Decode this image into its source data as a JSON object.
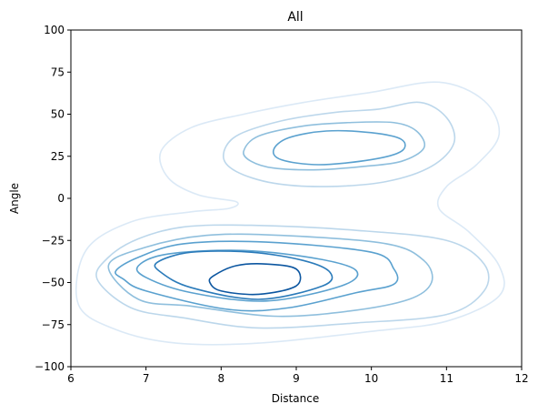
{
  "chart_data": {
    "type": "contour",
    "title": "All",
    "xlabel": "Distance",
    "ylabel": "Angle",
    "xlim": [
      6,
      12
    ],
    "ylim": [
      -100,
      100
    ],
    "xticks": [
      6,
      7,
      8,
      9,
      10,
      11,
      12
    ],
    "yticks": [
      100,
      75,
      50,
      25,
      0,
      -25,
      -50,
      -75,
      -100
    ],
    "grid": false,
    "legend": "none",
    "colormap": "Blues",
    "contour_levels": [
      {
        "level": 1,
        "color": "#dbe9f6",
        "paths": [
          [
            [
              6.2,
              -31
            ],
            [
              6.8,
              -14
            ],
            [
              7.6,
              -8
            ],
            [
              8.1,
              -6
            ],
            [
              8.2,
              -2
            ],
            [
              7.7,
              2
            ],
            [
              7.3,
              12
            ],
            [
              7.2,
              28
            ],
            [
              7.6,
              42
            ],
            [
              8.3,
              50
            ],
            [
              9.1,
              57
            ],
            [
              10.0,
              63
            ],
            [
              10.9,
              69
            ],
            [
              11.5,
              58
            ],
            [
              11.7,
              38
            ],
            [
              11.4,
              20
            ],
            [
              11.0,
              7
            ],
            [
              10.9,
              -6
            ],
            [
              11.3,
              -20
            ],
            [
              11.7,
              -40
            ],
            [
              11.7,
              -58
            ],
            [
              11.0,
              -73
            ],
            [
              10.0,
              -79
            ],
            [
              8.5,
              -86
            ],
            [
              7.4,
              -86
            ],
            [
              6.6,
              -78
            ],
            [
              6.1,
              -63
            ]
          ]
        ]
      },
      {
        "level": 2,
        "color": "#bcd7eb",
        "paths": [
          [
            [
              8.03,
              25
            ],
            [
              8.2,
              37
            ],
            [
              8.8,
              46
            ],
            [
              9.5,
              51
            ],
            [
              10.1,
              53
            ],
            [
              10.65,
              57
            ],
            [
              11.0,
              48
            ],
            [
              11.1,
              33
            ],
            [
              10.8,
              19
            ],
            [
              10.2,
              10
            ],
            [
              9.4,
              7
            ],
            [
              8.7,
              9
            ],
            [
              8.2,
              16
            ]
          ],
          [
            [
              6.35,
              -48
            ],
            [
              6.5,
              -35
            ],
            [
              6.9,
              -24
            ],
            [
              7.5,
              -17
            ],
            [
              8.4,
              -16
            ],
            [
              9.8,
              -19
            ],
            [
              11.0,
              -25
            ],
            [
              11.5,
              -39
            ],
            [
              11.5,
              -55
            ],
            [
              11.0,
              -69
            ],
            [
              9.8,
              -74
            ],
            [
              8.5,
              -77
            ],
            [
              7.5,
              -71
            ],
            [
              6.8,
              -65
            ]
          ]
        ]
      },
      {
        "level": 3,
        "color": "#8fbfdd",
        "paths": [
          [
            [
              8.3,
              28
            ],
            [
              8.5,
              37
            ],
            [
              9.1,
              43
            ],
            [
              9.7,
              45
            ],
            [
              10.3,
              45
            ],
            [
              10.6,
              40
            ],
            [
              10.7,
              30
            ],
            [
              10.4,
              22
            ],
            [
              9.9,
              19
            ],
            [
              9.3,
              17
            ],
            [
              8.7,
              18
            ],
            [
              8.4,
              22
            ]
          ],
          [
            [
              6.5,
              -40
            ],
            [
              7.0,
              -29
            ],
            [
              7.8,
              -22
            ],
            [
              8.8,
              -22
            ],
            [
              10.2,
              -27
            ],
            [
              10.7,
              -37
            ],
            [
              10.8,
              -50
            ],
            [
              10.5,
              -60
            ],
            [
              9.7,
              -67
            ],
            [
              8.7,
              -70
            ],
            [
              7.6,
              -64
            ],
            [
              6.9,
              -60
            ]
          ]
        ]
      },
      {
        "level": 4,
        "color": "#5aa1cf",
        "paths": [
          [
            [
              8.7,
              29
            ],
            [
              8.9,
              36
            ],
            [
              9.4,
              40
            ],
            [
              10.0,
              39
            ],
            [
              10.4,
              35
            ],
            [
              10.4,
              28
            ],
            [
              10.0,
              23
            ],
            [
              9.3,
              20
            ],
            [
              8.8,
              23
            ]
          ],
          [
            [
              6.6,
              -43
            ],
            [
              6.9,
              -35
            ],
            [
              7.5,
              -27
            ],
            [
              8.6,
              -26
            ],
            [
              10.0,
              -32
            ],
            [
              10.3,
              -42
            ],
            [
              10.3,
              -51
            ],
            [
              9.8,
              -56
            ],
            [
              8.9,
              -65
            ],
            [
              8.1,
              -66
            ],
            [
              7.0,
              -55
            ],
            [
              6.7,
              -48
            ]
          ],
          [
            [
              6.9,
              -40
            ],
            [
              7.3,
              -33
            ],
            [
              8.3,
              -31
            ],
            [
              9.3,
              -36
            ],
            [
              9.8,
              -43
            ],
            [
              9.6,
              -52
            ],
            [
              8.6,
              -61
            ],
            [
              7.6,
              -56
            ],
            [
              7.0,
              -47
            ]
          ]
        ]
      },
      {
        "level": 5,
        "color": "#2b7bba",
        "paths": [
          [
            [
              7.15,
              -38
            ],
            [
              7.6,
              -32
            ],
            [
              8.4,
              -32
            ],
            [
              9.1,
              -37
            ],
            [
              9.45,
              -44
            ],
            [
              9.35,
              -52
            ],
            [
              8.5,
              -60
            ],
            [
              7.6,
              -53
            ],
            [
              7.2,
              -44
            ]
          ]
        ]
      },
      {
        "level": 6,
        "color": "#0c56a0",
        "paths": [
          [
            [
              7.9,
              -46
            ],
            [
              8.2,
              -40
            ],
            [
              8.6,
              -39
            ],
            [
              9.0,
              -42
            ],
            [
              9.0,
              -52
            ],
            [
              8.5,
              -57
            ],
            [
              8.0,
              -55
            ],
            [
              7.85,
              -50
            ]
          ]
        ]
      }
    ]
  }
}
